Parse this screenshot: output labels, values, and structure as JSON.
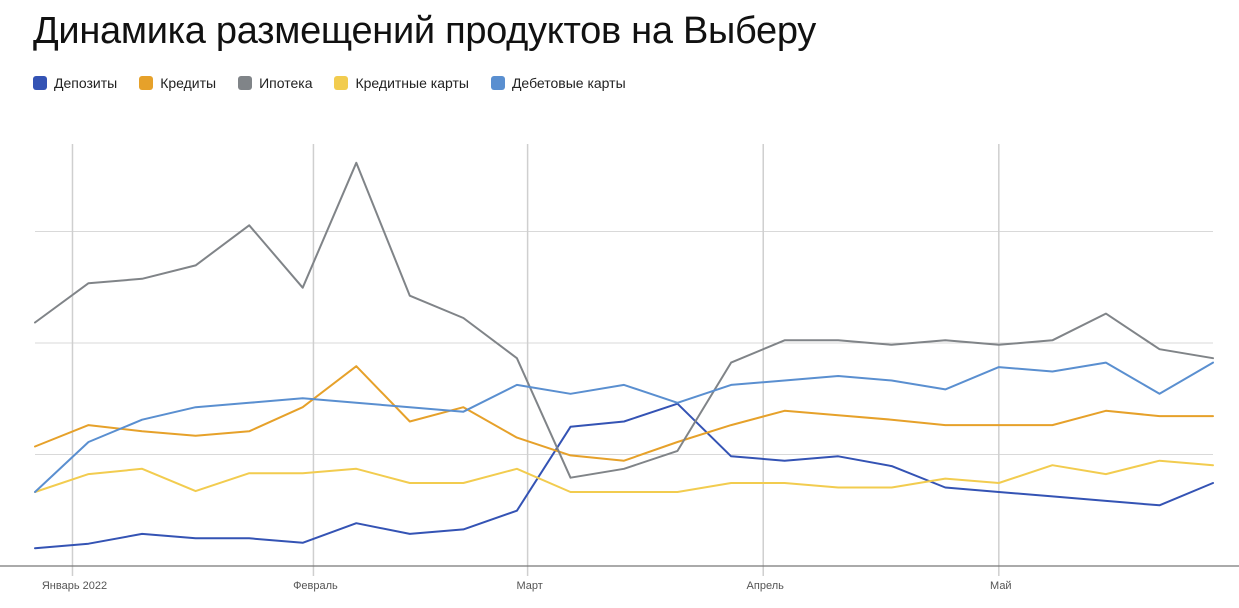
{
  "chart_data": {
    "type": "line",
    "title": "Динамика размещений продуктов на Выберу",
    "xlabel": "",
    "ylabel": "",
    "x_tick_labels": [
      "Январь 2022",
      "Февраль",
      "Март",
      "Апрель",
      "Май"
    ],
    "x_tick_indices": [
      0.7,
      5.2,
      9.2,
      13.6,
      18.0
    ],
    "points_count": 23,
    "ylim": [
      0,
      100
    ],
    "grid": true,
    "legend_position": "top-left",
    "series": [
      {
        "name": "Депозиты",
        "color": "#3453b4",
        "values": [
          4,
          5,
          7.2,
          6.2,
          6.2,
          5.2,
          9.6,
          7.2,
          8.2,
          12.4,
          31.2,
          32.4,
          36.4,
          24.6,
          23.6,
          24.6,
          22.4,
          17.6,
          16.6,
          15.6,
          14.6,
          13.6,
          18.6
        ]
      },
      {
        "name": "Кредиты",
        "color": "#e6a12a",
        "values": [
          26.8,
          31.6,
          30.2,
          29.2,
          30.2,
          35.6,
          44.8,
          32.4,
          35.6,
          28.8,
          24.8,
          23.6,
          27.8,
          31.6,
          34.8,
          33.8,
          32.8,
          31.6,
          31.6,
          31.6,
          34.8,
          33.6,
          33.6
        ]
      },
      {
        "name": "Ипотека",
        "color": "#808488",
        "values": [
          54.6,
          63.4,
          64.4,
          67.4,
          76.4,
          62.4,
          90.4,
          60.6,
          55.6,
          46.6,
          19.8,
          21.8,
          25.8,
          45.6,
          50.6,
          50.6,
          49.6,
          50.6,
          49.6,
          50.6,
          56.6,
          48.6,
          46.6
        ]
      },
      {
        "name": "Кредитные карты",
        "color": "#f2cc4f",
        "values": [
          16.6,
          20.6,
          21.8,
          16.8,
          20.8,
          20.8,
          21.8,
          18.6,
          18.6,
          21.8,
          16.6,
          16.6,
          16.6,
          18.6,
          18.6,
          17.6,
          17.6,
          19.6,
          18.6,
          22.6,
          20.6,
          23.6,
          22.6
        ]
      },
      {
        "name": "Дебетовые карты",
        "color": "#5a8fd0",
        "values": [
          16.6,
          27.8,
          32.8,
          35.6,
          36.6,
          37.6,
          36.6,
          35.6,
          34.6,
          40.6,
          38.6,
          40.6,
          36.6,
          40.6,
          41.6,
          42.6,
          41.6,
          39.6,
          44.6,
          43.6,
          45.6,
          38.6,
          45.6
        ]
      }
    ]
  }
}
